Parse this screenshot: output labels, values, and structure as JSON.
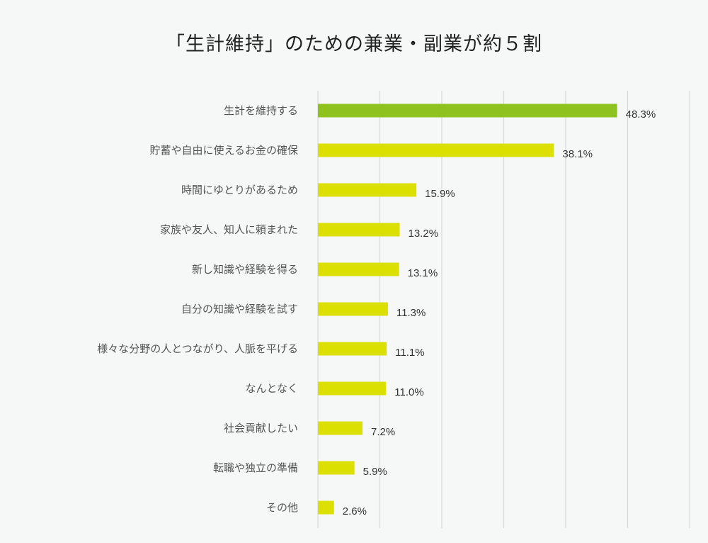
{
  "chart_data": {
    "type": "bar",
    "orientation": "horizontal",
    "title": "「生計維持」のための兼業・副業が約５割",
    "categories": [
      "生計を維持する",
      "貯蓄や自由に使えるお金の確保",
      "時間にゆとりがあるため",
      "家族や友人、知人に頼まれた",
      "新し知識や経験を得る",
      "自分の知識や経験を試す",
      "様々な分野の人とつながり、人脈を平げる",
      "なんとなく",
      "社会貢献したい",
      "転職や独立の準備",
      "その他"
    ],
    "values": [
      48.3,
      38.1,
      15.9,
      13.2,
      13.1,
      11.3,
      11.1,
      11.0,
      7.2,
      5.9,
      2.6
    ],
    "value_labels": [
      "48.3%",
      "38.1%",
      "15.9%",
      "13.2%",
      "13.1%",
      "11.3%",
      "11.1%",
      "11.0%",
      "7.2%",
      "5.9%",
      "2.6%"
    ],
    "xlim": [
      0,
      60
    ],
    "grid_step": 10,
    "grid": true,
    "xlabel": "",
    "ylabel": "",
    "colors": {
      "highlight": "#8dc21f",
      "default": "#dce000",
      "grid": "#d9d9d9",
      "background": "#f6f8f8"
    }
  }
}
